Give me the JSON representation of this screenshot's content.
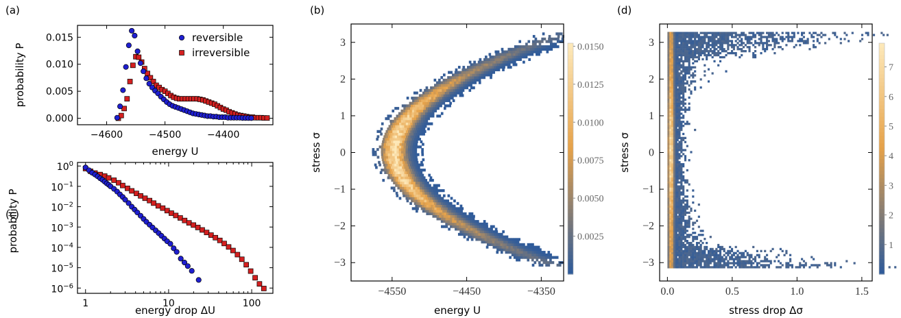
{
  "colors": {
    "reversible": "#1f1fd0",
    "irreversible": "#d42020",
    "heat_low": "#2f5b9a",
    "heat_mid": "#e6a24a",
    "heat_high": "#fde8b8"
  },
  "chart_data": [
    {
      "id": "a",
      "panel_label": "(a)",
      "type": "scatter",
      "xlabel": "energy U",
      "ylabel": "probability P",
      "xlim": [
        -4650,
        -4315
      ],
      "ylim": [
        -0.0012,
        0.0172
      ],
      "xticks": [
        -4600,
        -4500,
        -4400
      ],
      "xtick_labels": [
        "−4600",
        "−4500",
        "−4400"
      ],
      "yticks": [
        0.0,
        0.005,
        0.01,
        0.015
      ],
      "ytick_labels": [
        "0.000",
        "0.005",
        "0.010",
        "0.015"
      ],
      "legend_position": "top-right",
      "series": [
        {
          "name": "reversible",
          "marker": "circle",
          "x": [
            -4582,
            -4577,
            -4572,
            -4567,
            -4562,
            -4557,
            -4552,
            -4547,
            -4542,
            -4537,
            -4532,
            -4527,
            -4522,
            -4517,
            -4512,
            -4507,
            -4502,
            -4497,
            -4492,
            -4487,
            -4482,
            -4477,
            -4472,
            -4467,
            -4462,
            -4457,
            -4452,
            -4447,
            -4442,
            -4437,
            -4432,
            -4427,
            -4422,
            -4417,
            -4412,
            -4407,
            -4402,
            -4397,
            -4392,
            -4387,
            -4382,
            -4377,
            -4372,
            -4367,
            -4362,
            -4357,
            -4352
          ],
          "y": [
            0.0001,
            0.0022,
            0.0052,
            0.0095,
            0.0135,
            0.0162,
            0.0153,
            0.0124,
            0.0102,
            0.0087,
            0.0074,
            0.0064,
            0.0057,
            0.0051,
            0.0046,
            0.004,
            0.0035,
            0.003,
            0.0026,
            0.0023,
            0.0021,
            0.0019,
            0.0017,
            0.0015,
            0.0013,
            0.0011,
            0.0009,
            0.0008,
            0.0007,
            0.0006,
            0.0005,
            0.0004,
            0.0004,
            0.0003,
            0.0003,
            0.0002,
            0.0002,
            0.0002,
            0.0001,
            0.0001,
            0.0001,
            0.0001,
            0.0001,
            5e-05,
            5e-05,
            4e-05,
            3e-05
          ]
        },
        {
          "name": "irreversible",
          "marker": "square",
          "x": [
            -4580,
            -4575,
            -4570,
            -4565,
            -4560,
            -4555,
            -4550,
            -4545,
            -4540,
            -4535,
            -4530,
            -4525,
            -4520,
            -4515,
            -4510,
            -4505,
            -4500,
            -4495,
            -4490,
            -4485,
            -4480,
            -4475,
            -4470,
            -4465,
            -4460,
            -4455,
            -4450,
            -4445,
            -4440,
            -4435,
            -4430,
            -4425,
            -4420,
            -4415,
            -4410,
            -4405,
            -4400,
            -4395,
            -4390,
            -4385,
            -4380,
            -4375,
            -4370,
            -4365,
            -4360,
            -4355,
            -4350,
            -4345,
            -4340,
            -4335,
            -4330,
            -4325
          ],
          "y": [
            0.0,
            0.0005,
            0.0018,
            0.0036,
            0.0068,
            0.0098,
            0.0114,
            0.0113,
            0.0104,
            0.0092,
            0.0083,
            0.0075,
            0.0068,
            0.0061,
            0.0057,
            0.0053,
            0.005,
            0.0046,
            0.0042,
            0.0039,
            0.0037,
            0.0036,
            0.0036,
            0.0036,
            0.0036,
            0.0036,
            0.0036,
            0.0036,
            0.0035,
            0.0034,
            0.0032,
            0.003,
            0.0028,
            0.0026,
            0.0023,
            0.002,
            0.0017,
            0.0015,
            0.0012,
            0.001,
            0.0008,
            0.0006,
            0.0005,
            0.0004,
            0.0003,
            0.0002,
            0.0002,
            0.0001,
            0.0001,
            0.0001,
            5e-05,
            5e-05
          ]
        }
      ]
    },
    {
      "id": "c",
      "panel_label": "(c)",
      "type": "scatter",
      "xlabel": "energy drop ΔU",
      "ylabel": "probability P",
      "xscale": "log",
      "yscale": "log",
      "xlim": [
        0.8,
        180
      ],
      "ylim": [
        5.5e-07,
        1.5
      ],
      "xticks": [
        1,
        10,
        100
      ],
      "xtick_labels": [
        "1",
        "10",
        "100"
      ],
      "yticks": [
        1,
        0.1,
        0.01,
        0.001,
        0.0001,
        1e-05,
        1e-06
      ],
      "ytick_bases": [
        "10",
        "10",
        "10",
        "10",
        "10",
        "10",
        "10"
      ],
      "ytick_exps": [
        "0",
        "−1",
        "−2",
        "−3",
        "−4",
        "−5",
        "−6"
      ],
      "series": [
        {
          "name": "reversible",
          "marker": "circle",
          "x": [
            1.0,
            1.1,
            1.2,
            1.3,
            1.4,
            1.5,
            1.6,
            1.7,
            1.8,
            1.9,
            2.0,
            2.2,
            2.4,
            2.6,
            2.8,
            3.0,
            3.3,
            3.6,
            3.9,
            4.2,
            4.6,
            5.0,
            5.4,
            5.9,
            6.4,
            7.0,
            7.6,
            8.2,
            8.9,
            9.6,
            10.5,
            11.5,
            12.5,
            14.0,
            15.5,
            17.0,
            19.0,
            23.0
          ],
          "y": [
            0.85,
            0.62,
            0.47,
            0.38,
            0.31,
            0.25,
            0.21,
            0.17,
            0.14,
            0.12,
            0.1,
            0.075,
            0.055,
            0.04,
            0.03,
            0.022,
            0.015,
            0.01,
            0.0072,
            0.0052,
            0.0036,
            0.0025,
            0.0018,
            0.0013,
            0.00095,
            0.00068,
            0.0005,
            0.00037,
            0.00027,
            0.0002,
            0.00015,
            9e-05,
            6e-05,
            2.8e-05,
            1.8e-05,
            1.2e-05,
            7e-06,
            2.5e-06
          ]
        },
        {
          "name": "irreversible",
          "marker": "square",
          "x": [
            1.0,
            1.15,
            1.3,
            1.5,
            1.7,
            1.9,
            2.2,
            2.5,
            2.8,
            3.2,
            3.6,
            4.1,
            4.6,
            5.2,
            5.9,
            6.6,
            7.5,
            8.5,
            9.6,
            10.8,
            12.2,
            13.8,
            15.6,
            17.6,
            19.9,
            22.5,
            25.4,
            28.7,
            32.4,
            36.6,
            41.4,
            46.7,
            52.8,
            59.6,
            67.4,
            76.1,
            86.0,
            97.2,
            110,
            124,
            140
          ],
          "y": [
            0.75,
            0.55,
            0.45,
            0.38,
            0.32,
            0.26,
            0.2,
            0.15,
            0.11,
            0.08,
            0.06,
            0.045,
            0.034,
            0.026,
            0.02,
            0.015,
            0.011,
            0.0085,
            0.0064,
            0.0048,
            0.0037,
            0.0028,
            0.0021,
            0.0016,
            0.00125,
            0.00095,
            0.00072,
            0.00054,
            0.0004,
            0.0003,
            0.00022,
            0.000155,
            0.000105,
            7e-05,
            4.4e-05,
            2.6e-05,
            1.4e-05,
            6.8e-06,
            3.2e-06,
            1.6e-06,
            9.5e-07
          ]
        }
      ]
    },
    {
      "id": "b",
      "panel_label": "(b)",
      "type": "heatmap",
      "xlabel": "energy U",
      "ylabel": "stress σ",
      "xlim": [
        -4605,
        -4320
      ],
      "ylim": [
        -3.5,
        3.5
      ],
      "xticks": [
        -4550,
        -4450,
        -4350
      ],
      "xtick_labels": [
        "−4550",
        "−4450",
        "−4350"
      ],
      "yticks": [
        3,
        2,
        1,
        0,
        -1,
        -2,
        -3
      ],
      "ytick_labels": [
        "3",
        "2",
        "1",
        "0",
        "−1",
        "−2",
        "−3"
      ],
      "colorbar": {
        "min": 0.0,
        "max": 0.0152,
        "ticks": [
          0.015,
          0.0125,
          0.01,
          0.0075,
          0.005,
          0.0025
        ],
        "tick_labels": [
          "0.0150",
          "0.0125",
          "0.0100",
          "0.0075",
          "0.0050",
          "0.0025"
        ]
      },
      "description_of_density": {
        "shape": "parabolic band opening to the right",
        "vertex_energy": -4565,
        "vertex_stress": 0,
        "curvature_energy_per_stress2": 22,
        "band_width_energy": 45,
        "peak_density": 0.0148,
        "stress_range": [
          -3.1,
          3.2
        ]
      }
    },
    {
      "id": "d",
      "panel_label": "(d)",
      "type": "heatmap",
      "xlabel": "stress drop Δσ",
      "ylabel": "stress σ",
      "xlim": [
        -0.06,
        1.58
      ],
      "ylim": [
        -3.5,
        3.5
      ],
      "xticks": [
        0.0,
        0.5,
        1.0,
        1.5
      ],
      "xtick_labels": [
        "0.0",
        "0.5",
        "1.0",
        "1.5"
      ],
      "yticks": [
        3,
        2,
        1,
        0,
        -1,
        -2,
        -3
      ],
      "ytick_labels": [
        "3",
        "2",
        "1",
        "0",
        "−1",
        "−2",
        "−3"
      ],
      "colorbar": {
        "min": 0,
        "max": 7.8,
        "ticks": [
          7,
          6,
          5,
          4,
          3,
          2,
          1
        ],
        "tick_labels": [
          "7",
          "6",
          "5",
          "4",
          "3",
          "2",
          "1"
        ]
      },
      "description_of_density": {
        "shape": "bright column near zero stress drop with side lobes near |σ|≈3",
        "column_center": 0.02,
        "column_peak_density": 7.2,
        "lobe_stress": [
          -3.0,
          3.0
        ],
        "lobe_extent_stress_drop": 1.5
      }
    }
  ]
}
